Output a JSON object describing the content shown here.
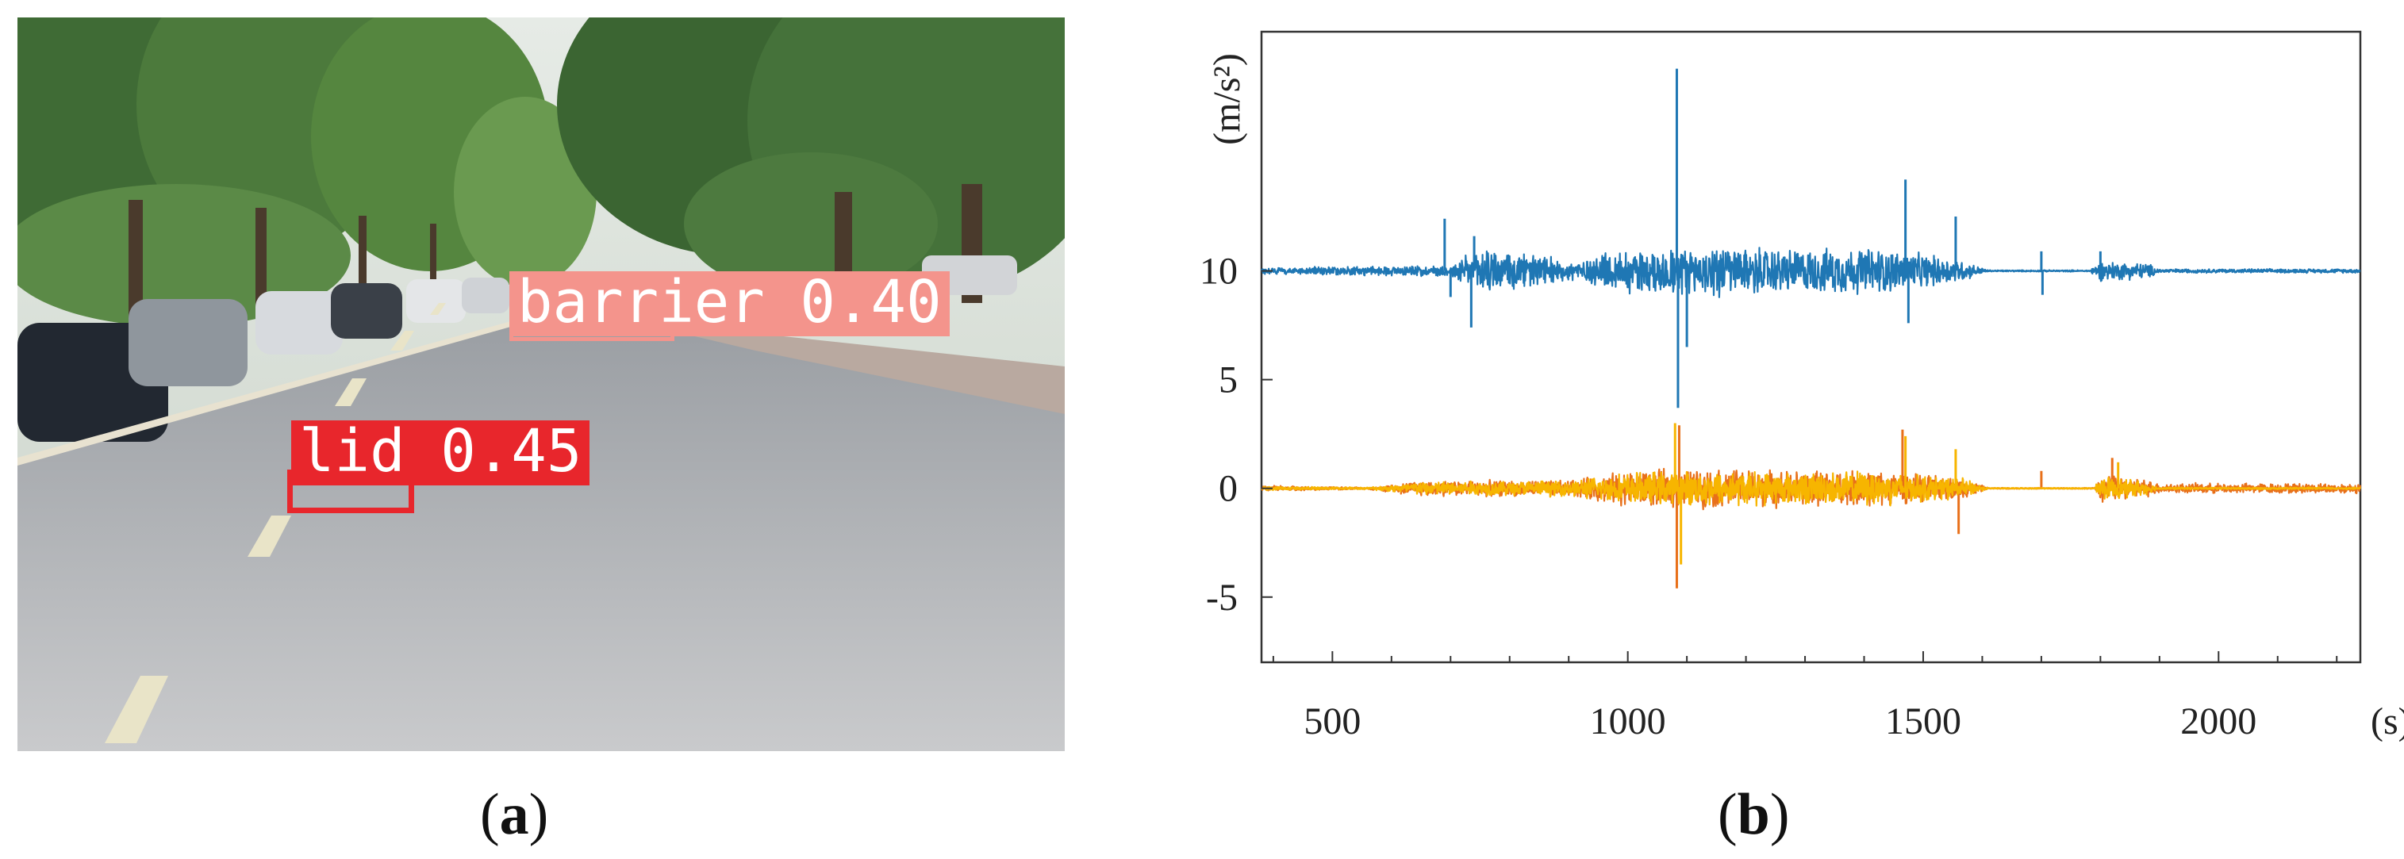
{
  "panel_a": {
    "caption_letter": "a",
    "detections": [
      {
        "label": "barrier",
        "score": "0.40",
        "text": "barrier 0.40",
        "color": "#f4948c"
      },
      {
        "label": "lid",
        "score": "0.45",
        "text": "lid 0.45",
        "color": "#e8262c"
      }
    ]
  },
  "panel_b": {
    "caption_letter": "b"
  },
  "chart_data": {
    "type": "line",
    "xlabel": "(s)",
    "ylabel": "(m/s²)",
    "xlim": [
      380,
      2240
    ],
    "ylim": [
      -8,
      21
    ],
    "xticks": [
      500,
      1000,
      1500,
      2000
    ],
    "yticks": [
      -5,
      0,
      5,
      10
    ],
    "grid": false,
    "series": [
      {
        "color": "#1f77b4",
        "baseline": 10,
        "noise_envelope": [
          [
            380,
            0.15
          ],
          [
            700,
            0.3
          ],
          [
            760,
            1.3
          ],
          [
            900,
            0.5
          ],
          [
            1000,
            1.2
          ],
          [
            1150,
            1.3
          ],
          [
            1300,
            1.1
          ],
          [
            1420,
            1.2
          ],
          [
            1560,
            0.6
          ],
          [
            1610,
            0.04
          ],
          [
            1780,
            0.04
          ],
          [
            1800,
            0.5
          ],
          [
            1880,
            0.4
          ],
          [
            1900,
            0.1
          ],
          [
            2240,
            0.1
          ]
        ],
        "spikes": [
          [
            690,
            12.4
          ],
          [
            700,
            8.8
          ],
          [
            735,
            7.4
          ],
          [
            740,
            11.6
          ],
          [
            1083,
            19.3
          ],
          [
            1085,
            3.7
          ],
          [
            1100,
            6.5
          ],
          [
            1470,
            14.2
          ],
          [
            1475,
            7.6
          ],
          [
            1555,
            12.5
          ],
          [
            1700,
            10.9
          ],
          [
            1702,
            8.9
          ],
          [
            1800,
            10.9
          ]
        ]
      },
      {
        "color": "#e8701a",
        "baseline": 0,
        "noise_envelope": [
          [
            380,
            0.15
          ],
          [
            560,
            0.05
          ],
          [
            650,
            0.4
          ],
          [
            900,
            0.4
          ],
          [
            1000,
            0.9
          ],
          [
            1150,
            1.0
          ],
          [
            1300,
            0.9
          ],
          [
            1420,
            0.9
          ],
          [
            1570,
            0.5
          ],
          [
            1610,
            0.03
          ],
          [
            1790,
            0.03
          ],
          [
            1800,
            0.7
          ],
          [
            1870,
            0.5
          ],
          [
            1900,
            0.25
          ],
          [
            2240,
            0.25
          ]
        ],
        "spikes": [
          [
            1083,
            -4.6
          ],
          [
            1087,
            2.9
          ],
          [
            1465,
            2.7
          ],
          [
            1560,
            -2.1
          ],
          [
            1700,
            0.8
          ],
          [
            1820,
            1.4
          ]
        ]
      },
      {
        "color": "#f7b500",
        "baseline": 0,
        "noise_envelope": [
          [
            380,
            0.1
          ],
          [
            560,
            0.05
          ],
          [
            650,
            0.35
          ],
          [
            900,
            0.4
          ],
          [
            1000,
            0.8
          ],
          [
            1150,
            0.9
          ],
          [
            1300,
            0.8
          ],
          [
            1420,
            0.9
          ],
          [
            1570,
            0.5
          ],
          [
            1610,
            0.03
          ],
          [
            1790,
            0.03
          ],
          [
            1800,
            0.6
          ],
          [
            1870,
            0.4
          ],
          [
            1900,
            0.05
          ],
          [
            2240,
            0.05
          ]
        ],
        "spikes": [
          [
            1080,
            3.0
          ],
          [
            1090,
            -3.5
          ],
          [
            1470,
            2.4
          ],
          [
            1555,
            1.8
          ],
          [
            1830,
            1.2
          ]
        ]
      }
    ]
  }
}
